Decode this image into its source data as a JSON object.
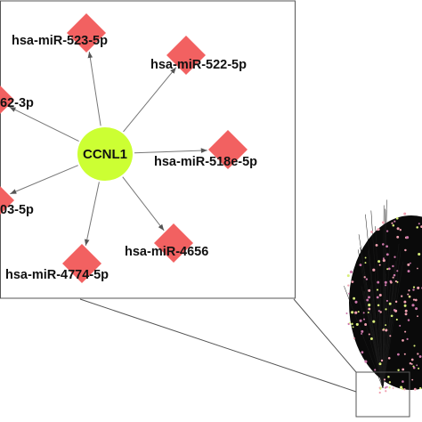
{
  "network": {
    "center": {
      "label": "CCNL1",
      "color": "#ccff33"
    },
    "mirna_color": "#f26161",
    "edge_color": "#777777",
    "nodes": [
      {
        "label": "hsa-miR-523-5p"
      },
      {
        "label": "hsa-miR-522-5p"
      },
      {
        "label": "hsa-miR-518e-5p"
      },
      {
        "label": "hsa-miR-4656"
      },
      {
        "label": "hsa-miR-4774-5p"
      },
      {
        "label": "03-5p"
      },
      {
        "label": "62-3p"
      }
    ]
  },
  "overview": {
    "blob_color": "#0a0a0a",
    "dot_colors": [
      "#f0a0b0",
      "#d9ee7a",
      "#cc77aa"
    ]
  }
}
